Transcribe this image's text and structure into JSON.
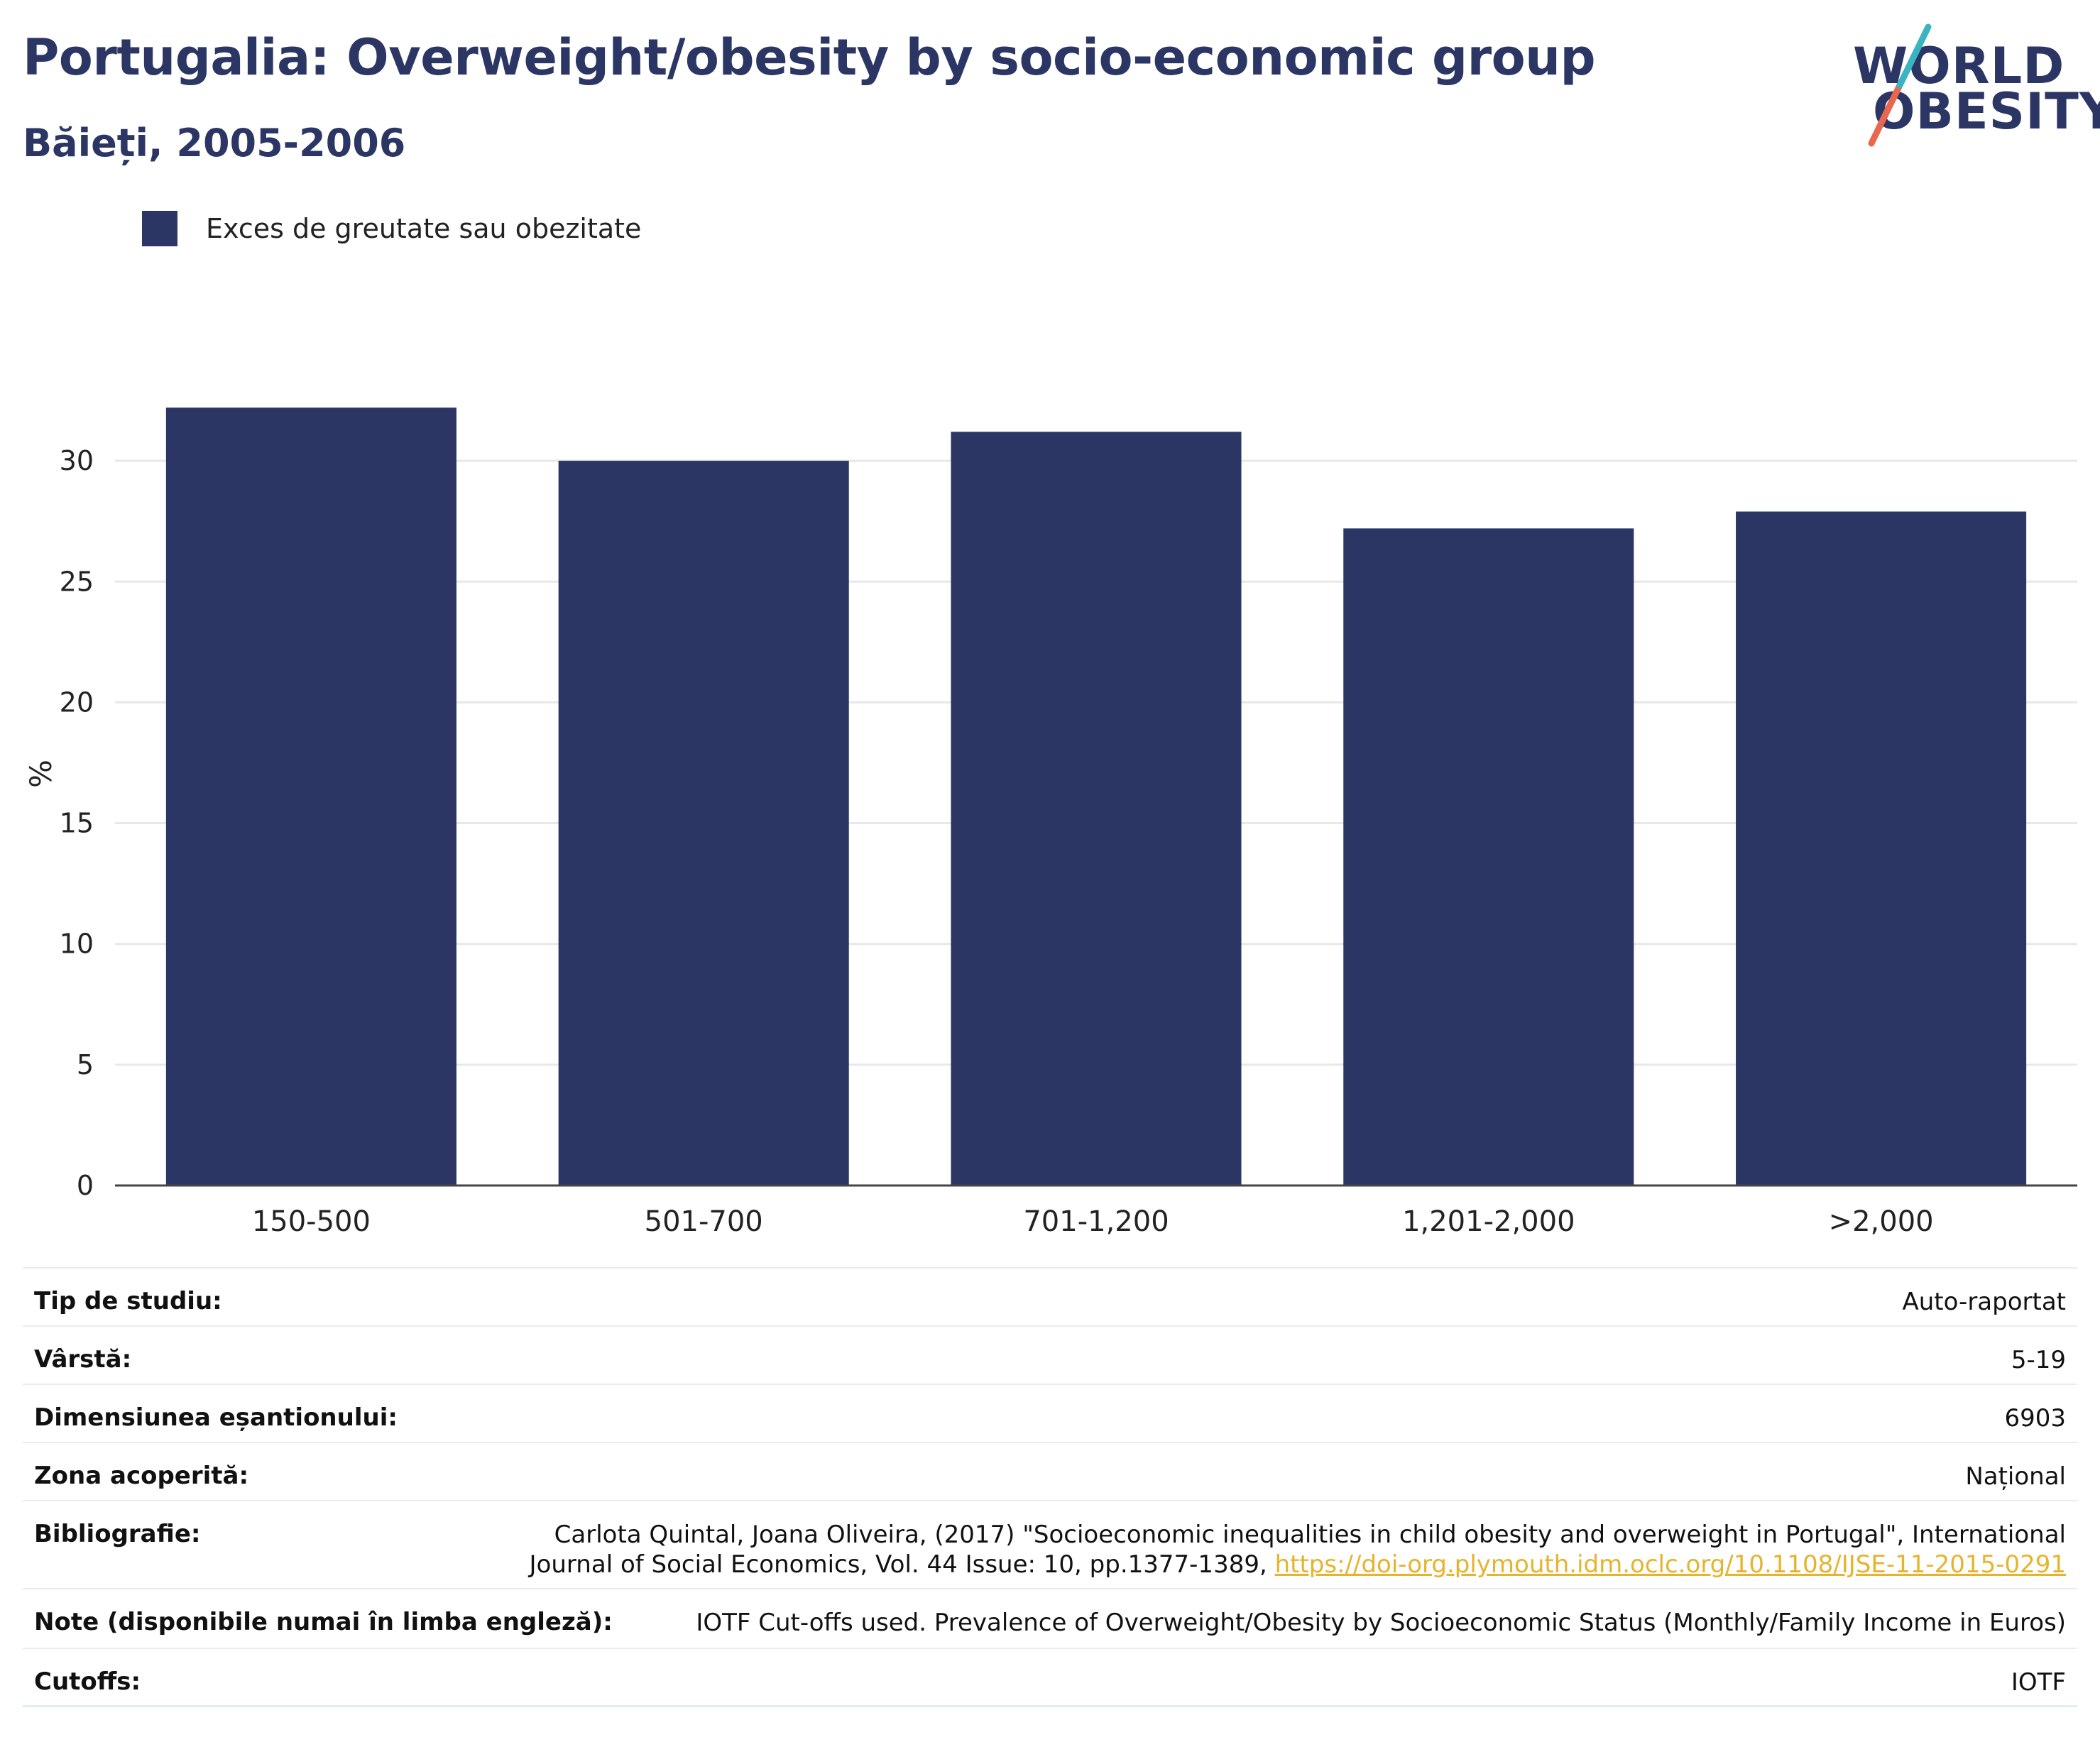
{
  "header": {
    "title": "Portugalia: Overweight/obesity by socio-economic group",
    "subtitle": "Băieți, 2005-2006"
  },
  "logo": {
    "line1": "WORLD",
    "line2": "OBESITY",
    "colors": [
      "#2b3664",
      "#e8674f",
      "#3bb4c1"
    ]
  },
  "legend": {
    "label": "Exces de greutate sau obezitate",
    "color": "#2b3664"
  },
  "chart_data": {
    "type": "bar",
    "categories": [
      "150-500",
      "501-700",
      "701-1,200",
      "1,201-2,000",
      ">2,000"
    ],
    "series": [
      {
        "name": "Exces de greutate sau obezitate",
        "values": [
          32.2,
          30.0,
          31.2,
          27.2,
          27.9
        ],
        "color": "#2b3664"
      }
    ],
    "ylabel": "%",
    "yticks": [
      0,
      5,
      10,
      15,
      20,
      25,
      30
    ],
    "ylim": [
      0,
      33.5
    ],
    "grid": true,
    "legend_position": "top-left"
  },
  "details": [
    {
      "label": "Tip de studiu:",
      "value": "Auto-raportat"
    },
    {
      "label": "Vârstă:",
      "value": "5-19"
    },
    {
      "label": "Dimensiunea eșantionului:",
      "value": "6903"
    },
    {
      "label": "Zona acoperită:",
      "value": "Național"
    },
    {
      "label": "Bibliografie:",
      "value": "Carlota Quintal, Joana Oliveira, (2017) \"Socioeconomic inequalities in child obesity and overweight in Portugal\", International Journal of Social Economics, Vol. 44 Issue: 10, pp.1377-1389, ",
      "link": "https://doi-org.plymouth.idm.oclc.org/10.1108/IJSE-11-2015-0291"
    },
    {
      "label": "Note (disponibile numai în limba engleză):",
      "value": "IOTF Cut-offs used. Prevalence of Overweight/Obesity by Socioeconomic Status (Monthly/Family Income in Euros)"
    },
    {
      "label": "Cutoffs:",
      "value": "IOTF"
    }
  ]
}
